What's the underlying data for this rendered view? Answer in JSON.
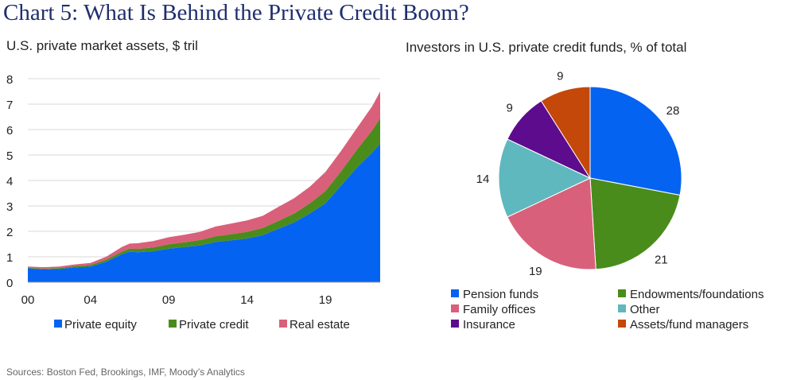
{
  "title": "Chart 5: What Is Behind the Private Credit Boom?",
  "source": "Sources: Boston Fed, Brookings, IMF, Moody’s Analytics",
  "chart_data": [
    {
      "type": "area",
      "stacked": true,
      "title": "U.S. private market assets, $ tril",
      "xlabel": "",
      "ylabel": "",
      "xlim": [
        2000,
        2022.5
      ],
      "ylim": [
        0,
        8
      ],
      "yticks": [
        "0",
        "1",
        "2",
        "3",
        "4",
        "5",
        "6",
        "7",
        "8"
      ],
      "ytick_values": [
        0,
        1,
        2,
        3,
        4,
        5,
        6,
        7,
        8
      ],
      "xticks": [
        "00",
        "04",
        "09",
        "14",
        "19"
      ],
      "xtick_values": [
        2000,
        2004,
        2009,
        2014,
        2019
      ],
      "grid": true,
      "legend_position": "bottom",
      "x": [
        2000,
        2001,
        2002,
        2003,
        2004,
        2005,
        2006,
        2006.5,
        2007,
        2008,
        2009,
        2010,
        2011,
        2012,
        2013,
        2014,
        2015,
        2016,
        2017,
        2018,
        2019,
        2020,
        2021,
        2022,
        2022.5
      ],
      "series": [
        {
          "name": "Private equity",
          "color": "#0563f2",
          "values": [
            0.55,
            0.5,
            0.52,
            0.58,
            0.62,
            0.8,
            1.1,
            1.2,
            1.18,
            1.22,
            1.32,
            1.38,
            1.45,
            1.58,
            1.65,
            1.72,
            1.85,
            2.1,
            2.35,
            2.7,
            3.1,
            3.8,
            4.5,
            5.1,
            5.45
          ]
        },
        {
          "name": "Private credit",
          "color": "#4a8c1c",
          "values": [
            0.02,
            0.03,
            0.04,
            0.05,
            0.06,
            0.08,
            0.1,
            0.12,
            0.13,
            0.15,
            0.17,
            0.19,
            0.21,
            0.23,
            0.24,
            0.26,
            0.28,
            0.31,
            0.35,
            0.4,
            0.48,
            0.56,
            0.7,
            0.88,
            1.0
          ]
        },
        {
          "name": "Real estate",
          "color": "#d9607a",
          "values": [
            0.05,
            0.06,
            0.06,
            0.07,
            0.08,
            0.12,
            0.18,
            0.2,
            0.22,
            0.25,
            0.28,
            0.3,
            0.32,
            0.38,
            0.42,
            0.45,
            0.48,
            0.55,
            0.6,
            0.65,
            0.75,
            0.8,
            0.85,
            0.95,
            1.05
          ]
        }
      ]
    },
    {
      "type": "pie",
      "title": "Investors in U.S. private credit funds, % of total",
      "start": "12 o'clock, clockwise",
      "legend_position": "bottom",
      "slices": [
        {
          "label": "Pension funds",
          "value": 28,
          "color": "#0563f2"
        },
        {
          "label": "Endowments/foundations",
          "value": 21,
          "color": "#4a8c1c"
        },
        {
          "label": "Family offices",
          "value": 19,
          "color": "#d9607a"
        },
        {
          "label": "Other",
          "value": 14,
          "color": "#5fb8bd"
        },
        {
          "label": "Insurance",
          "value": 9,
          "color": "#5c0c8c"
        },
        {
          "label": "Assets/fund managers",
          "value": 9,
          "color": "#c4480a"
        }
      ]
    }
  ]
}
